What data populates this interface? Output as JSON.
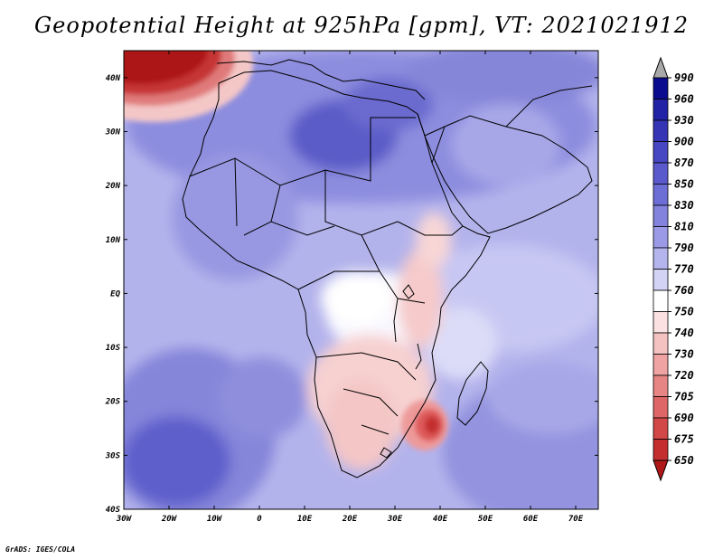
{
  "title": "Geopotential Height at 925hPa [gpm], VT: 2021021912",
  "credit": "GrADS: IGES/COLA",
  "map": {
    "projection": "lat-lon",
    "lon_range": [
      -30,
      75
    ],
    "lat_range": [
      -40,
      45
    ],
    "lon_ticks": [
      "30W",
      "20W",
      "10W",
      "0",
      "10E",
      "20E",
      "30E",
      "40E",
      "50E",
      "60E",
      "70E"
    ],
    "lat_ticks": [
      "40N",
      "30N",
      "20N",
      "10N",
      "EQ",
      "10S",
      "20S",
      "30S",
      "40S"
    ]
  },
  "colorbar": {
    "levels": [
      "990",
      "960",
      "930",
      "900",
      "870",
      "850",
      "830",
      "810",
      "790",
      "770",
      "760",
      "750",
      "740",
      "730",
      "720",
      "705",
      "690",
      "675",
      "650"
    ],
    "colors": [
      "#0b0b8f",
      "#2222a6",
      "#3535b6",
      "#4747c3",
      "#5a5acd",
      "#6d6dd6",
      "#8383de",
      "#9a9ae6",
      "#b5b5ee",
      "#d3d3f6",
      "#ffffff",
      "#fbe1e1",
      "#f5c2c2",
      "#efa3a3",
      "#e78484",
      "#de6666",
      "#d24848",
      "#c42e2e",
      "#b01818"
    ],
    "top_arrow_color": "#a9a9a9",
    "bottom_arrow_color": "#b01818"
  }
}
